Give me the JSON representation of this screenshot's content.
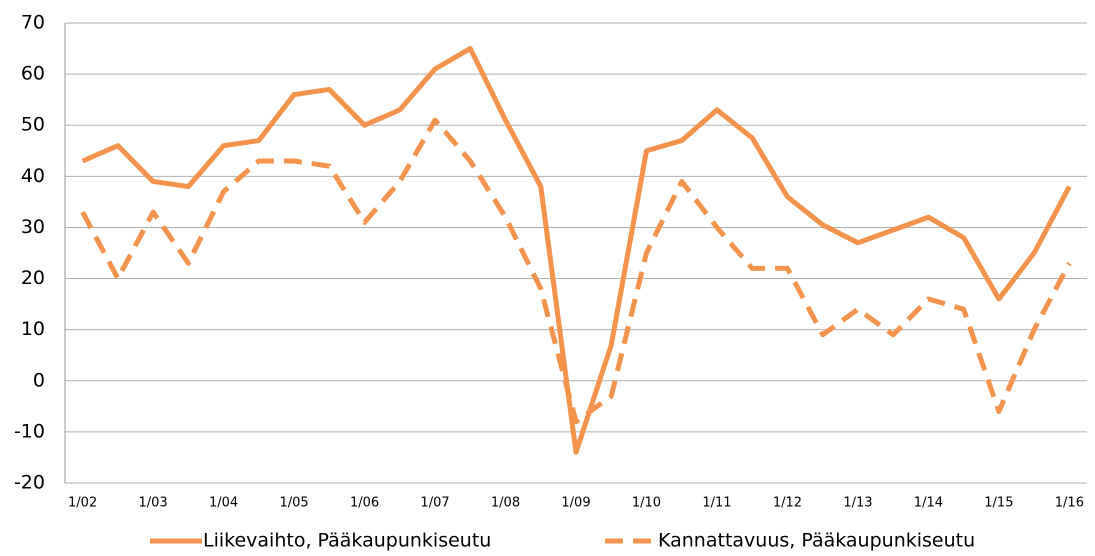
{
  "chart_data": {
    "type": "line",
    "categories": [
      "1/02",
      null,
      "1/03",
      null,
      "1/04",
      null,
      "1/05",
      null,
      "1/06",
      null,
      "1/07",
      null,
      "1/08",
      null,
      "1/09",
      null,
      "1/10",
      null,
      "1/11",
      null,
      "1/12",
      null,
      "1/13",
      null,
      "1/14",
      null,
      "1/15",
      null,
      "1/16"
    ],
    "series": [
      {
        "name": "Liikevaihto, Pääkaupunkiseutu",
        "color": "#f4934b",
        "dash": false,
        "values": [
          43,
          46,
          39,
          38,
          46,
          47,
          56,
          57,
          50,
          53,
          61,
          65,
          51,
          38,
          -14,
          7,
          45,
          47,
          53,
          47.5,
          36,
          30.5,
          27,
          29.5,
          32,
          28,
          16,
          25,
          38
        ]
      },
      {
        "name": "Kannattavuus, Pääkaupunkiseutu",
        "color": "#f4934b",
        "dash": true,
        "values": [
          33,
          20,
          33,
          23,
          37,
          43,
          43,
          42,
          31,
          39,
          51,
          43,
          32,
          18,
          -8,
          -3,
          25,
          39,
          30,
          22,
          22,
          9,
          14,
          9,
          16,
          14,
          -6,
          10,
          23
        ]
      }
    ],
    "ylim": [
      -20,
      70
    ],
    "yticks": [
      -20,
      -10,
      0,
      10,
      20,
      30,
      40,
      50,
      60,
      70
    ],
    "grid": true,
    "legend": "bottom"
  }
}
